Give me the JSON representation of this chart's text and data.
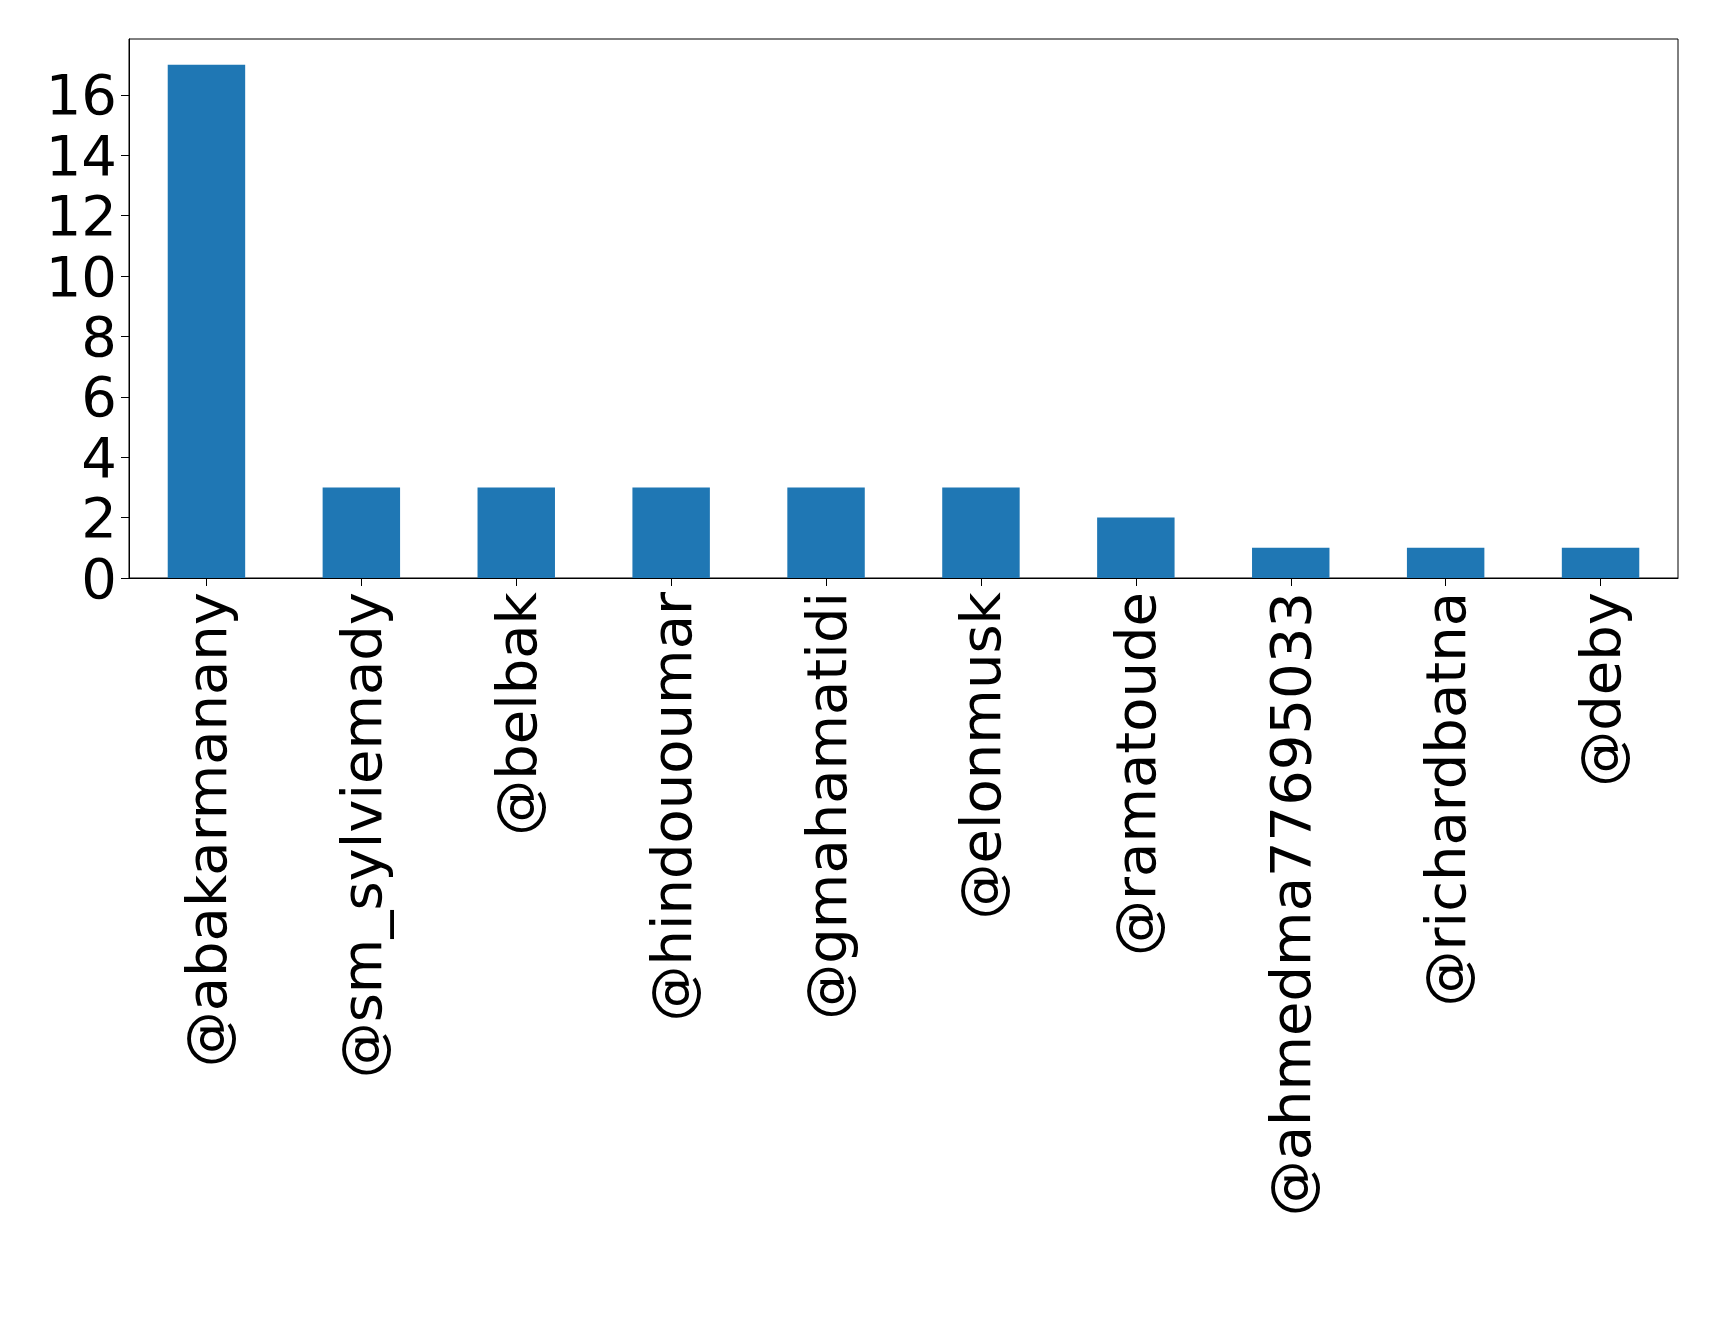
{
  "chart_data": {
    "type": "bar",
    "categories": [
      "@abakarmanany",
      "@sm_sylviemady",
      "@belbak",
      "@hindououmar",
      "@gmahamatidi",
      "@elonmusk",
      "@ramatoude",
      "@ahmedma77695033",
      "@richardbatna",
      "@deby"
    ],
    "values": [
      17,
      3,
      3,
      3,
      3,
      3,
      2,
      1,
      1,
      1
    ],
    "color": "#1f77b4",
    "ylim": [
      0,
      17.85
    ],
    "yticks": [
      0,
      2,
      4,
      6,
      8,
      10,
      12,
      14,
      16
    ]
  }
}
